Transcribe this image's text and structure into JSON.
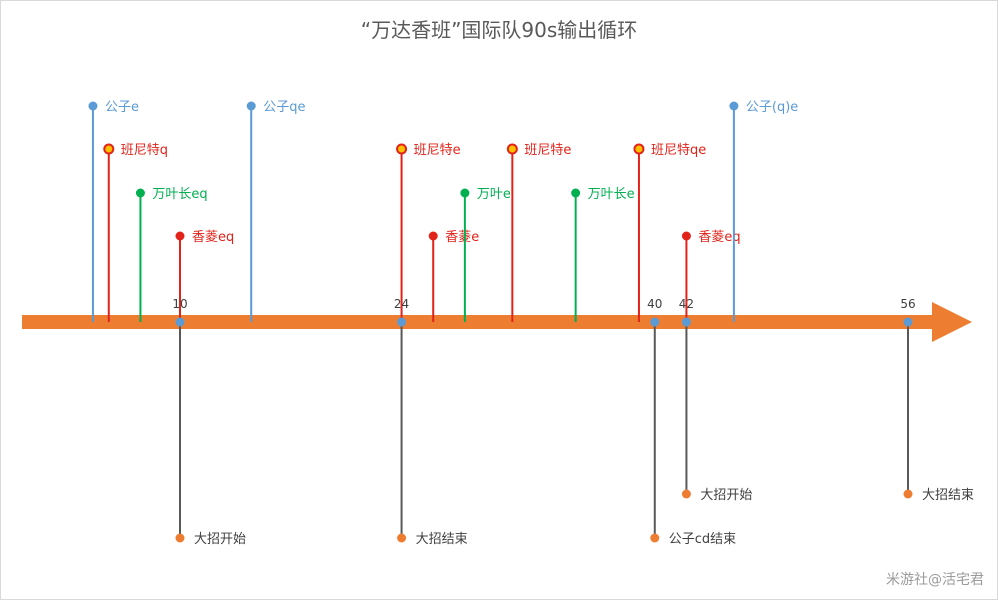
{
  "chart_data": {
    "type": "timeline",
    "title": "“万达香班”国际队90s输出循环",
    "axis": {
      "color": "#ED7D31",
      "ticks": [
        10,
        24,
        40,
        42,
        56
      ]
    },
    "events_above": [
      {
        "t": 4.5,
        "label": "公子e",
        "color": "#5B9BD5",
        "level": 1
      },
      {
        "t": 5.5,
        "label": "班尼特q",
        "color": "#E2231A",
        "level": 2,
        "marker_fill": "#FFC000"
      },
      {
        "t": 7.5,
        "label": "万叶长eq",
        "color": "#00B050",
        "level": 3
      },
      {
        "t": 10,
        "label": "香菱eq",
        "color": "#E2231A",
        "level": 4
      },
      {
        "t": 14.5,
        "label": "公子qe",
        "color": "#5B9BD5",
        "level": 1
      },
      {
        "t": 24,
        "label": "班尼特e",
        "color": "#E2231A",
        "level": 2,
        "marker_fill": "#FFC000"
      },
      {
        "t": 26,
        "label": "香菱e",
        "color": "#E2231A",
        "level": 4
      },
      {
        "t": 28,
        "label": "万叶e",
        "color": "#00B050",
        "level": 3
      },
      {
        "t": 31,
        "label": "班尼特e",
        "color": "#E2231A",
        "level": 2,
        "marker_fill": "#FFC000"
      },
      {
        "t": 35,
        "label": "万叶长e",
        "color": "#00B050",
        "level": 3
      },
      {
        "t": 39,
        "label": "班尼特qe",
        "color": "#E2231A",
        "level": 2,
        "marker_fill": "#FFC000"
      },
      {
        "t": 42,
        "label": "香菱eq",
        "color": "#E2231A",
        "level": 4
      },
      {
        "t": 45,
        "label": "公子(q)e",
        "color": "#5B9BD5",
        "level": 1
      }
    ],
    "events_below": [
      {
        "t": 10,
        "label": "大招开始",
        "level": 2
      },
      {
        "t": 24,
        "label": "大招结束",
        "level": 2
      },
      {
        "t": 40,
        "label": "公子cd结束",
        "level": 2
      },
      {
        "t": 42,
        "label": "大招开始",
        "level": 1
      },
      {
        "t": 56,
        "label": "大招结束",
        "level": 1
      }
    ],
    "below_line_color": "#595959",
    "below_marker_color": "#ED7D31",
    "tick_marker_color": "#5B9BD5"
  },
  "watermark": "米游社@活宅君"
}
